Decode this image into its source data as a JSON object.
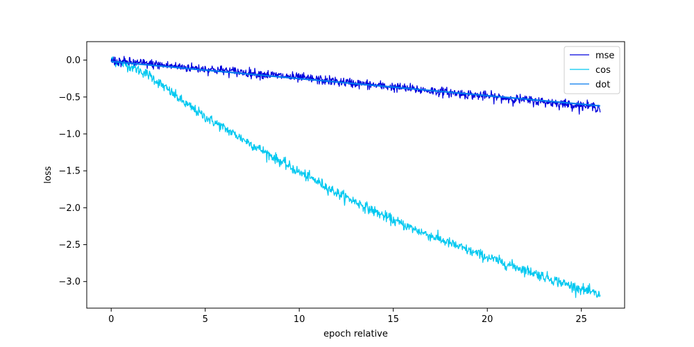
{
  "chart_data": {
    "type": "line",
    "xlabel": "epoch relative",
    "ylabel": "loss",
    "xlim": [
      -1.3,
      27.3
    ],
    "ylim": [
      -3.36,
      0.25
    ],
    "xticks": [
      0,
      5,
      10,
      15,
      20,
      25
    ],
    "yticks": [
      0.0,
      -0.5,
      -1.0,
      -1.5,
      -2.0,
      -2.5,
      -3.0
    ],
    "xtick_labels": [
      "0",
      "5",
      "10",
      "15",
      "20",
      "25"
    ],
    "ytick_labels": [
      "0.0",
      "−0.5",
      "−1.0",
      "−1.5",
      "−2.0",
      "−2.5",
      "−3.0"
    ],
    "legend_position": "top-right",
    "grid": false,
    "series": [
      {
        "name": "mse",
        "color": "#0000dd",
        "noise": 0.032,
        "x": [
          0,
          2,
          4,
          6,
          8,
          10,
          12,
          14,
          16,
          18,
          20,
          22,
          24,
          26
        ],
        "y": [
          -0.01,
          -0.05,
          -0.1,
          -0.14,
          -0.19,
          -0.24,
          -0.29,
          -0.34,
          -0.39,
          -0.44,
          -0.49,
          -0.54,
          -0.59,
          -0.64
        ]
      },
      {
        "name": "cos",
        "color": "#00c8f0",
        "noise": 0.035,
        "x": [
          0,
          1,
          2,
          3,
          4,
          5,
          6,
          7,
          8,
          9,
          10,
          11,
          12,
          13,
          14,
          15,
          16,
          17,
          18,
          19,
          20,
          21,
          22,
          23,
          24,
          25,
          26
        ],
        "y": [
          0.0,
          -0.08,
          -0.2,
          -0.4,
          -0.6,
          -0.77,
          -0.92,
          -1.07,
          -1.22,
          -1.37,
          -1.52,
          -1.65,
          -1.8,
          -1.92,
          -2.05,
          -2.17,
          -2.28,
          -2.38,
          -2.48,
          -2.58,
          -2.67,
          -2.76,
          -2.84,
          -2.93,
          -3.02,
          -3.1,
          -3.19
        ]
      },
      {
        "name": "dot",
        "color": "#0077ee",
        "noise": 0.0,
        "x": [
          0,
          26
        ],
        "y": [
          -0.02,
          -0.62
        ]
      }
    ]
  }
}
